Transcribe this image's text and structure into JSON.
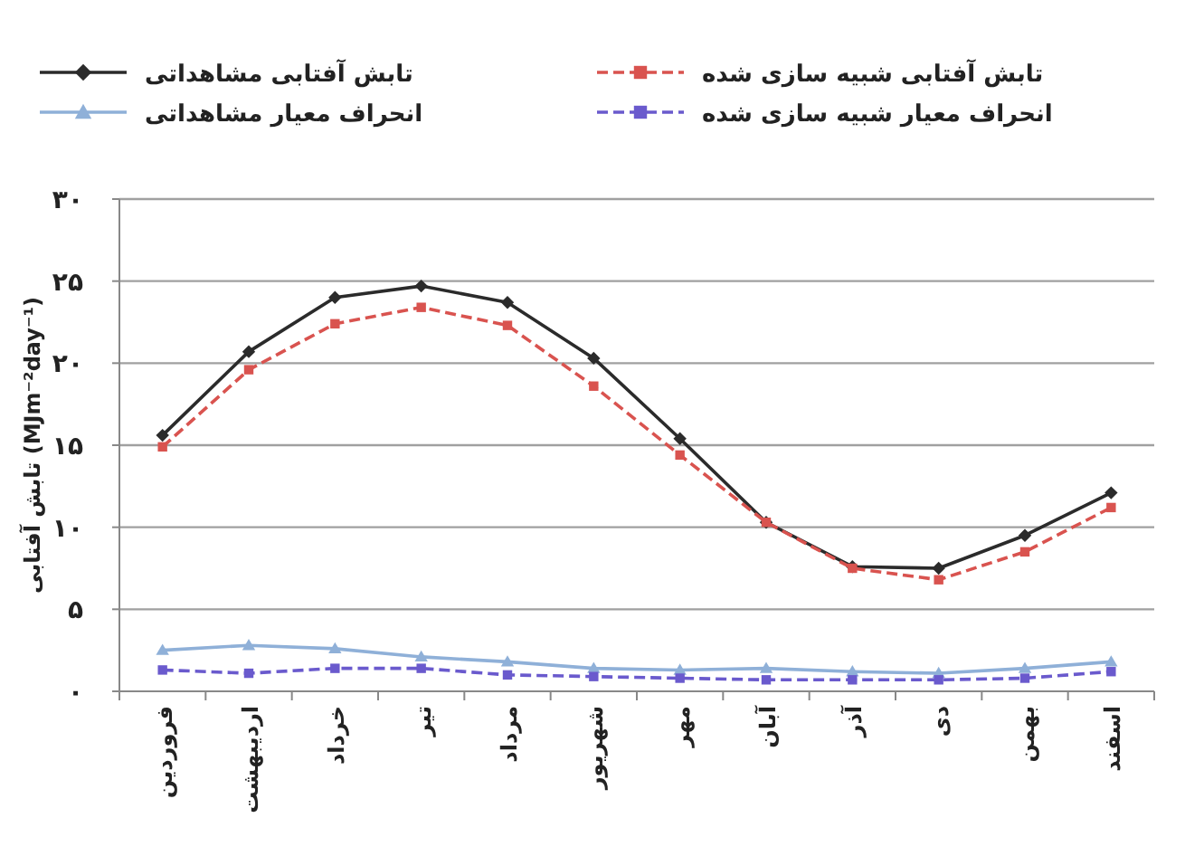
{
  "chart_data": {
    "type": "line",
    "ylabel": "تابش آفتابی (MJm⁻²day⁻¹)",
    "categories": [
      "فروردین",
      "اردیبهشت",
      "خرداد",
      "تیر",
      "مرداد",
      "شهریور",
      "مهر",
      "آبان",
      "آذر",
      "دی",
      "بهمن",
      "اسفند"
    ],
    "series": [
      {
        "name": "تابش آفتابی مشاهداتی",
        "color": "#2b2b2b",
        "marker": "diamond",
        "line_style": "solid",
        "values": [
          15.6,
          20.7,
          24.0,
          24.7,
          23.7,
          20.3,
          15.4,
          10.3,
          7.6,
          7.5,
          9.5,
          12.1
        ]
      },
      {
        "name": "تابش آفتابی شبیه سازی شده",
        "color": "#d9534f",
        "marker": "square",
        "line_style": "dashed",
        "values": [
          14.9,
          19.6,
          22.4,
          23.4,
          22.3,
          18.6,
          14.4,
          10.3,
          7.5,
          6.8,
          8.5,
          11.2
        ]
      },
      {
        "name": "انحراف معیار مشاهداتی",
        "color": "#8fb0d8",
        "marker": "triangle",
        "line_style": "solid",
        "values": [
          2.5,
          2.8,
          2.6,
          2.1,
          1.8,
          1.4,
          1.3,
          1.4,
          1.2,
          1.1,
          1.4,
          1.8
        ]
      },
      {
        "name": "انحراف معیار شبیه سازی شده",
        "color": "#6a5acd",
        "marker": "square",
        "line_style": "dashed",
        "values": [
          1.3,
          1.1,
          1.4,
          1.4,
          1.0,
          0.9,
          0.8,
          0.7,
          0.7,
          0.7,
          0.8,
          1.2
        ]
      }
    ],
    "ylim": [
      0,
      30
    ],
    "yticks": [
      {
        "value": 0,
        "label": "۰"
      },
      {
        "value": 5,
        "label": "۵"
      },
      {
        "value": 10,
        "label": "۱۰"
      },
      {
        "value": 15,
        "label": "۱۵"
      },
      {
        "value": 20,
        "label": "۲۰"
      },
      {
        "value": 25,
        "label": "۲۵"
      },
      {
        "value": 30,
        "label": "۳۰"
      }
    ],
    "grid": "y",
    "legend": "top"
  }
}
